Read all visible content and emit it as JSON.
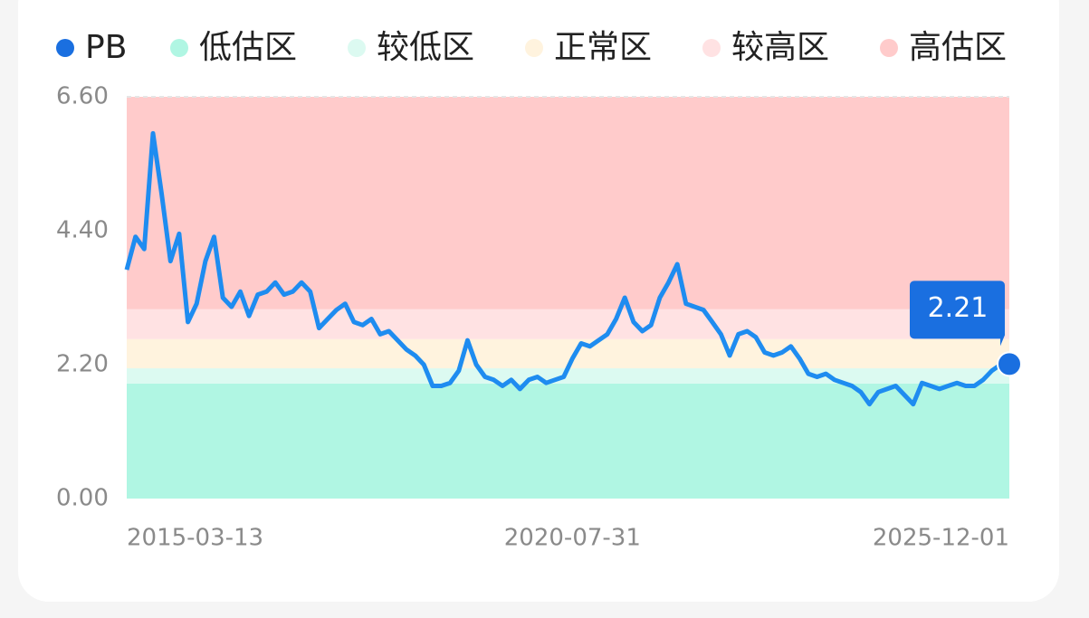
{
  "chart_data": {
    "type": "line",
    "categories": [
      "2015-03-13",
      null,
      null,
      null,
      null,
      null,
      null,
      null,
      null,
      null,
      null,
      null,
      null,
      null,
      null,
      null,
      null,
      null,
      null,
      null,
      null,
      null,
      null,
      null,
      null,
      null,
      null,
      null,
      null,
      null,
      null,
      null,
      null,
      null,
      null,
      null,
      null,
      null,
      null,
      null,
      null,
      null,
      null,
      null,
      null,
      null,
      null,
      null,
      null,
      null,
      null,
      "2020-07-31",
      null,
      null,
      null,
      null,
      null,
      null,
      null,
      null,
      null,
      null,
      null,
      null,
      null,
      null,
      null,
      null,
      null,
      null,
      null,
      null,
      null,
      null,
      null,
      null,
      null,
      null,
      null,
      null,
      null,
      null,
      null,
      null,
      null,
      null,
      null,
      null,
      null,
      null,
      null,
      null,
      null,
      null,
      null,
      null,
      null,
      null,
      null,
      null,
      null,
      "2025-12-01"
    ],
    "series": [
      {
        "name": "PB",
        "color": "#1e8cf0",
        "marker_color": "#1a6fe0",
        "values": [
          3.76,
          4.3,
          4.1,
          6.0,
          5.0,
          3.9,
          4.35,
          2.9,
          3.2,
          3.9,
          4.3,
          3.3,
          3.15,
          3.4,
          3.0,
          3.35,
          3.4,
          3.55,
          3.35,
          3.4,
          3.55,
          3.4,
          2.8,
          2.95,
          3.1,
          3.2,
          2.9,
          2.85,
          2.95,
          2.7,
          2.75,
          2.6,
          2.45,
          2.35,
          2.2,
          1.85,
          1.85,
          1.9,
          2.1,
          2.6,
          2.2,
          2.0,
          1.95,
          1.85,
          1.95,
          1.8,
          1.95,
          2.0,
          1.9,
          1.95,
          2.0,
          2.3,
          2.55,
          2.5,
          2.6,
          2.7,
          2.95,
          3.3,
          2.9,
          2.75,
          2.85,
          3.3,
          3.55,
          3.85,
          3.2,
          3.15,
          3.1,
          2.9,
          2.7,
          2.35,
          2.7,
          2.75,
          2.65,
          2.4,
          2.35,
          2.4,
          2.5,
          2.3,
          2.05,
          2.0,
          2.05,
          1.95,
          1.9,
          1.85,
          1.75,
          1.55,
          1.75,
          1.8,
          1.85,
          1.7,
          1.55,
          1.9,
          1.85,
          1.8,
          1.85,
          1.9,
          1.85,
          1.85,
          1.95,
          2.1,
          2.2,
          2.21
        ]
      }
    ],
    "bands": [
      {
        "name": "低估区",
        "color": "#b0f6e3",
        "range": [
          0,
          1.89
        ]
      },
      {
        "name": "较低区",
        "color": "#dcfaf1",
        "range": [
          1.89,
          2.14
        ]
      },
      {
        "name": "正常区",
        "color": "#fff3de",
        "range": [
          2.14,
          2.62
        ]
      },
      {
        "name": "较高区",
        "color": "#ffe2e3",
        "range": [
          2.62,
          3.11
        ]
      },
      {
        "name": "高估区",
        "color": "#ffcbcb",
        "range": [
          3.11,
          6.6
        ]
      }
    ],
    "ylim": [
      0,
      6.6
    ],
    "yticks": [
      {
        "value": 0,
        "label": "0.00"
      },
      {
        "value": 2.2,
        "label": "2.20"
      },
      {
        "value": 4.4,
        "label": "4.40"
      },
      {
        "value": 6.6,
        "label": "6.60"
      }
    ]
  }
}
